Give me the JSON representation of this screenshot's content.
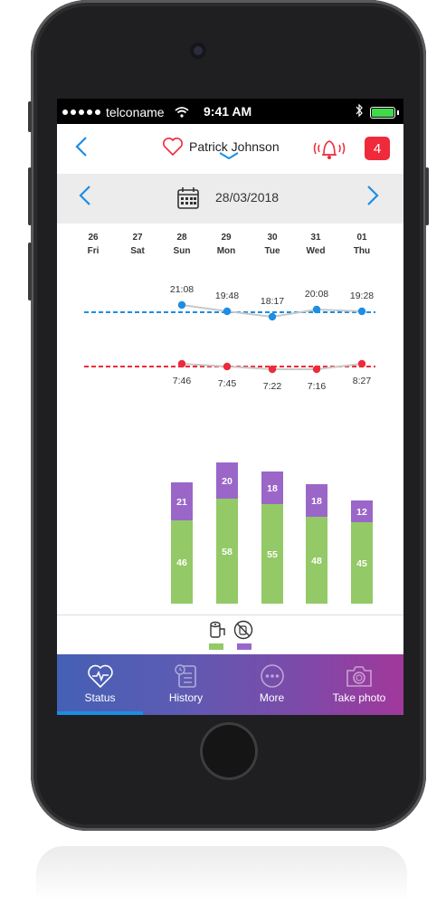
{
  "status_bar": {
    "carrier": "telconame",
    "time": "9:41 AM"
  },
  "header": {
    "patient_name": "Patrick Johnson",
    "alert_count": "4"
  },
  "date_nav": {
    "date": "28/03/2018"
  },
  "days": [
    {
      "num": "26",
      "name": "Fri"
    },
    {
      "num": "27",
      "name": "Sat"
    },
    {
      "num": "28",
      "name": "Sun"
    },
    {
      "num": "29",
      "name": "Mon"
    },
    {
      "num": "30",
      "name": "Tue"
    },
    {
      "num": "31",
      "name": "Wed"
    },
    {
      "num": "01",
      "name": "Thu"
    }
  ],
  "chart_data": [
    {
      "type": "line",
      "x": [
        "Sun",
        "Mon",
        "Tue",
        "Wed",
        "Thu"
      ],
      "series": [
        {
          "color": "#1c8ee3",
          "labels": [
            "21:08",
            "19:48",
            "18:17",
            "20:08",
            "19:28"
          ]
        },
        {
          "color": "#ef2a3a",
          "labels": [
            "7:46",
            "7:45",
            "7:22",
            "7:16",
            "8:27"
          ]
        }
      ]
    },
    {
      "type": "bar",
      "categories": [
        "Sun",
        "Mon",
        "Tue",
        "Wed",
        "Thu"
      ],
      "series": [
        {
          "color": "#93c966",
          "values": [
            46,
            58,
            55,
            48,
            45
          ]
        },
        {
          "color": "#9a67c9",
          "values": [
            21,
            20,
            18,
            18,
            12
          ]
        }
      ]
    }
  ],
  "legend": {
    "colors": [
      "#93c966",
      "#9a67c9"
    ]
  },
  "tabs": [
    {
      "label": "Status",
      "icon": "heart-pulse-icon"
    },
    {
      "label": "History",
      "icon": "clipboard-clock-icon"
    },
    {
      "label": "More",
      "icon": "more-dots-icon"
    },
    {
      "label": "Take photo",
      "icon": "camera-icon"
    }
  ]
}
